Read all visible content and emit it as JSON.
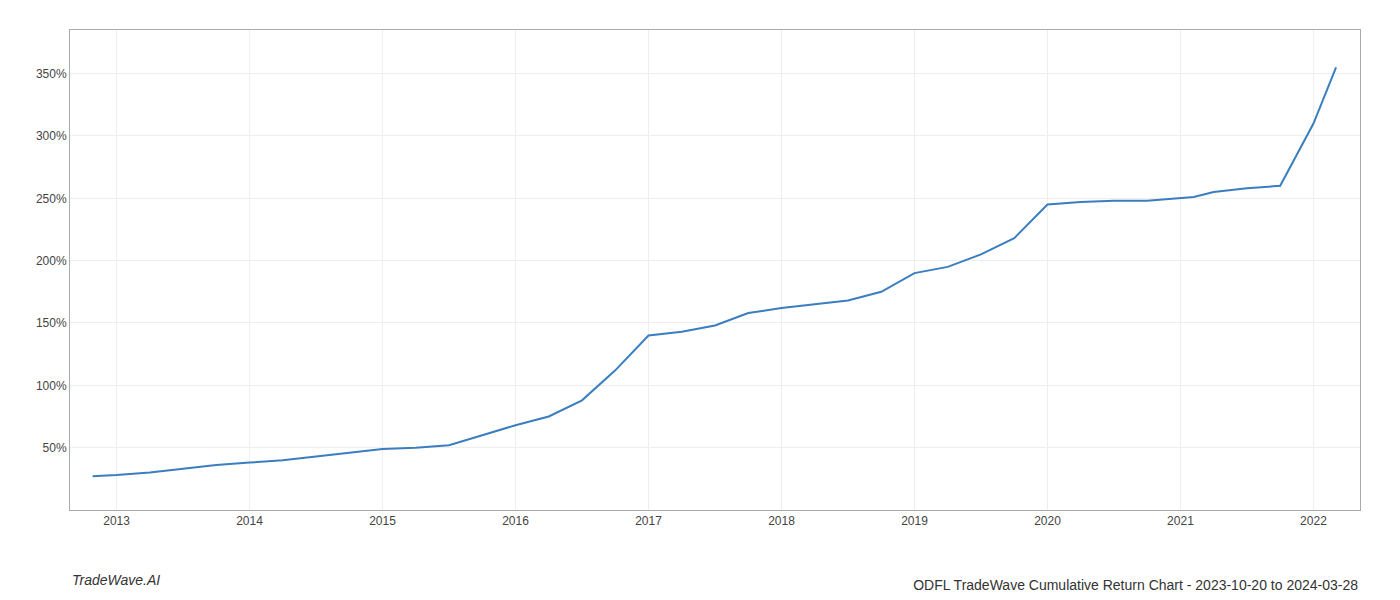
{
  "chart_data": {
    "type": "line",
    "title": "ODFL TradeWave Cumulative Return Chart - 2023-10-20 to 2024-03-28",
    "annotations": [
      "TradeWave.AI"
    ],
    "color": "#3a7ebf",
    "x": [
      2012.82,
      2013.0,
      2013.25,
      2013.5,
      2013.75,
      2014.0,
      2014.25,
      2014.5,
      2014.75,
      2015.0,
      2015.25,
      2015.5,
      2015.75,
      2016.0,
      2016.25,
      2016.5,
      2016.75,
      2017.0,
      2017.25,
      2017.5,
      2017.75,
      2018.0,
      2018.25,
      2018.5,
      2018.75,
      2019.0,
      2019.25,
      2019.5,
      2019.75,
      2020.0,
      2020.25,
      2020.5,
      2020.75,
      2021.0,
      2021.1,
      2021.25,
      2021.5,
      2021.75,
      2022.0,
      2022.17
    ],
    "values": [
      27,
      28,
      30,
      33,
      36,
      38,
      40,
      43,
      46,
      49,
      50,
      52,
      60,
      68,
      75,
      88,
      112,
      140,
      143,
      148,
      158,
      162,
      165,
      168,
      175,
      190,
      195,
      205,
      218,
      245,
      247,
      248,
      248,
      250,
      251,
      255,
      258,
      260,
      310,
      355
    ],
    "xlim": [
      2012.65,
      2022.35
    ],
    "ylim": [
      0,
      385
    ],
    "xticks": [
      2013,
      2014,
      2015,
      2016,
      2017,
      2018,
      2019,
      2020,
      2021,
      2022
    ],
    "yticks": [
      {
        "value": 50,
        "label": "50%"
      },
      {
        "value": 100,
        "label": "100%"
      },
      {
        "value": 150,
        "label": "150%"
      },
      {
        "value": 200,
        "label": "200%"
      },
      {
        "value": 250,
        "label": "250%"
      },
      {
        "value": 300,
        "label": "300%"
      },
      {
        "value": 350,
        "label": "350%"
      }
    ],
    "grid": true
  }
}
